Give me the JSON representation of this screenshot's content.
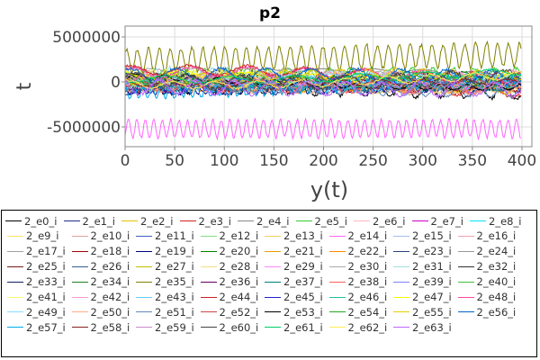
{
  "chart_data": {
    "type": "line",
    "title": "p2",
    "xlabel": "y(t)",
    "ylabel": "t",
    "xlim": [
      0,
      410
    ],
    "ylim": [
      -7200000,
      6200000
    ],
    "x_ticks": [
      "0",
      "50",
      "100",
      "150",
      "200",
      "250",
      "300",
      "350",
      "400"
    ],
    "y_ticks": [
      "5000000",
      "0",
      "-5000000"
    ],
    "y_tick_values": [
      5000000,
      0,
      -5000000
    ],
    "x_tick_values": [
      0,
      50,
      100,
      150,
      200,
      250,
      300,
      350,
      400
    ],
    "grid": true,
    "legend_position": "bottom",
    "n_points": 400,
    "highlighted_series": [
      {
        "name": "2_e35_i",
        "center": 2700000,
        "amplitude": 1300000,
        "period": 11,
        "trend": 700000
      },
      {
        "name": "2_e14_i",
        "center": -5200000,
        "amplitude": 1000000,
        "period": 8.5,
        "trend": 0
      }
    ],
    "series": [
      {
        "name": "2_e0_i",
        "color": "#000000"
      },
      {
        "name": "2_e1_i",
        "color": "#1f2a8c"
      },
      {
        "name": "2_e2_i",
        "color": "#e6c200"
      },
      {
        "name": "2_e3_i",
        "color": "#d62020"
      },
      {
        "name": "2_e4_i",
        "color": "#888888"
      },
      {
        "name": "2_e5_i",
        "color": "#33cc33"
      },
      {
        "name": "2_e6_i",
        "color": "#ffb6c1"
      },
      {
        "name": "2_e7_i",
        "color": "#cc00cc"
      },
      {
        "name": "2_e8_i",
        "color": "#00e5ff"
      },
      {
        "name": "2_e9_i",
        "color": "#ffe066"
      },
      {
        "name": "2_e10_i",
        "color": "#e0a0a0"
      },
      {
        "name": "2_e11_i",
        "color": "#4060c0"
      },
      {
        "name": "2_e12_i",
        "color": "#80e080"
      },
      {
        "name": "2_e13_i",
        "color": "#f0d060"
      },
      {
        "name": "2_e14_i",
        "color": "#ff66ff"
      },
      {
        "name": "2_e15_i",
        "color": "#a0c0f0"
      },
      {
        "name": "2_e16_i",
        "color": "#f0a0b0"
      },
      {
        "name": "2_e17_i",
        "color": "#a0a0a0"
      },
      {
        "name": "2_e18_i",
        "color": "#a00000"
      },
      {
        "name": "2_e19_i",
        "color": "#000080"
      },
      {
        "name": "2_e20_i",
        "color": "#008000"
      },
      {
        "name": "2_e21_i",
        "color": "#e6a000"
      },
      {
        "name": "2_e22_i",
        "color": "#ff8c00"
      },
      {
        "name": "2_e23_i",
        "color": "#2a4080"
      },
      {
        "name": "2_e24_i",
        "color": "#9a9a9a"
      },
      {
        "name": "2_e25_i",
        "color": "#7a1a1a"
      },
      {
        "name": "2_e26_i",
        "color": "#3a5a9a"
      },
      {
        "name": "2_e27_i",
        "color": "#c0c000"
      },
      {
        "name": "2_e28_i",
        "color": "#f0e080"
      },
      {
        "name": "2_e29_i",
        "color": "#ff88ff"
      },
      {
        "name": "2_e30_i",
        "color": "#aaaaaa"
      },
      {
        "name": "2_e31_i",
        "color": "#a0e0e0"
      },
      {
        "name": "2_e32_i",
        "color": "#303030"
      },
      {
        "name": "2_e33_i",
        "color": "#102060"
      },
      {
        "name": "2_e34_i",
        "color": "#208020"
      },
      {
        "name": "2_e35_i",
        "color": "#808000"
      },
      {
        "name": "2_e36_i",
        "color": "#600060"
      },
      {
        "name": "2_e37_i",
        "color": "#008080"
      },
      {
        "name": "2_e38_i",
        "color": "#ff6060"
      },
      {
        "name": "2_e39_i",
        "color": "#8080ff"
      },
      {
        "name": "2_e40_i",
        "color": "#40c040"
      },
      {
        "name": "2_e41_i",
        "color": "#f8f870"
      },
      {
        "name": "2_e42_i",
        "color": "#ff99cc"
      },
      {
        "name": "2_e43_i",
        "color": "#66ccff"
      },
      {
        "name": "2_e44_i",
        "color": "#d02020"
      },
      {
        "name": "2_e45_i",
        "color": "#2020d0"
      },
      {
        "name": "2_e46_i",
        "color": "#20c0a0"
      },
      {
        "name": "2_e47_i",
        "color": "#ffff00"
      },
      {
        "name": "2_e48_i",
        "color": "#ff44aa"
      },
      {
        "name": "2_e49_i",
        "color": "#88ddff"
      },
      {
        "name": "2_e50_i",
        "color": "#ffaa88"
      },
      {
        "name": "2_e51_i",
        "color": "#6688bb"
      },
      {
        "name": "2_e52_i",
        "color": "#cc4444"
      },
      {
        "name": "2_e53_i",
        "color": "#000000"
      },
      {
        "name": "2_e54_i",
        "color": "#22aa22"
      },
      {
        "name": "2_e55_i",
        "color": "#e6d000"
      },
      {
        "name": "2_e56_i",
        "color": "#0066cc"
      },
      {
        "name": "2_e57_i",
        "color": "#00aaee"
      },
      {
        "name": "2_e58_i",
        "color": "#882222"
      },
      {
        "name": "2_e59_i",
        "color": "#cc88cc"
      },
      {
        "name": "2_e60_i",
        "color": "#444444"
      },
      {
        "name": "2_e61_i",
        "color": "#00cc66"
      },
      {
        "name": "2_e62_i",
        "color": "#ffee55"
      },
      {
        "name": "2_e63_i",
        "color": "#bb66ff"
      }
    ]
  }
}
